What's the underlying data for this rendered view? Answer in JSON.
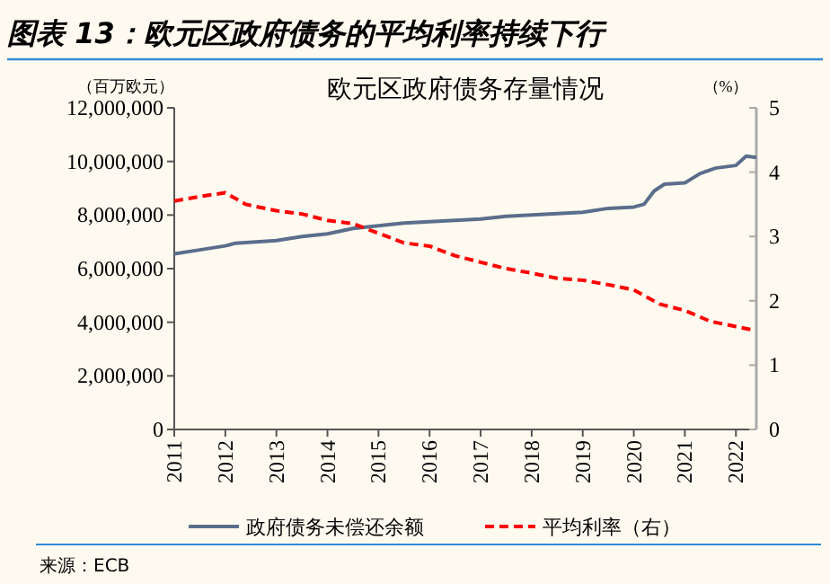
{
  "chart_data": {
    "type": "line",
    "title": "图表 13：欧元区政府债务的平均利率持续下行",
    "subtitle": "欧元区政府债务存量情况",
    "ylabel": "（百万欧元）",
    "y2label": "（%）",
    "xlim": [
      2011,
      2022.4
    ],
    "xticks": [
      2011,
      2012,
      2013,
      2014,
      2015,
      2016,
      2017,
      2018,
      2019,
      2020,
      2021,
      2022
    ],
    "ylim": [
      0,
      12000000
    ],
    "yticks": [
      {
        "value": 0,
        "label": "0"
      },
      {
        "value": 2000000,
        "label": "2,000,000"
      },
      {
        "value": 4000000,
        "label": "4,000,000"
      },
      {
        "value": 6000000,
        "label": "6,000,000"
      },
      {
        "value": 8000000,
        "label": "8,000,000"
      },
      {
        "value": 10000000,
        "label": "10,000,000"
      },
      {
        "value": 12000000,
        "label": "12,000,000"
      }
    ],
    "y2lim": [
      0,
      5
    ],
    "y2ticks": [
      0,
      1,
      2,
      3,
      4,
      5
    ],
    "series": [
      {
        "name": "政府债务未偿还余额",
        "color": "#5a6e8c",
        "line_style": "solid",
        "x": [
          2011,
          2011.5,
          2012,
          2012.2,
          2013,
          2013.5,
          2014,
          2014.5,
          2015,
          2015.5,
          2016,
          2016.5,
          2017,
          2017.5,
          2018,
          2018.5,
          2019,
          2019.5,
          2020,
          2020.2,
          2020.4,
          2020.6,
          2021,
          2021.3,
          2021.6,
          2022,
          2022.2,
          2022.4
        ],
        "values": [
          6550000,
          6700000,
          6850000,
          6950000,
          7050000,
          7200000,
          7300000,
          7500000,
          7600000,
          7700000,
          7750000,
          7800000,
          7850000,
          7950000,
          8000000,
          8050000,
          8100000,
          8250000,
          8300000,
          8400000,
          8900000,
          9150000,
          9200000,
          9550000,
          9750000,
          9850000,
          10200000,
          10150000
        ]
      },
      {
        "name": "平均利率（右）",
        "color": "#ff0000",
        "line_style": "dashed",
        "axis": "y2",
        "x": [
          2011,
          2011.5,
          2012,
          2012.4,
          2013,
          2013.5,
          2014,
          2014.5,
          2015,
          2015.5,
          2016,
          2016.5,
          2017,
          2017.5,
          2018,
          2018.5,
          2019,
          2019.5,
          2020,
          2020.5,
          2021,
          2021.5,
          2022,
          2022.3
        ],
        "values": [
          3.55,
          3.62,
          3.68,
          3.5,
          3.4,
          3.35,
          3.25,
          3.2,
          3.05,
          2.9,
          2.85,
          2.7,
          2.6,
          2.5,
          2.43,
          2.35,
          2.32,
          2.25,
          2.17,
          1.95,
          1.85,
          1.68,
          1.6,
          1.55
        ]
      }
    ],
    "legend": "bottom",
    "annotations": [
      "来源：ECB"
    ]
  }
}
